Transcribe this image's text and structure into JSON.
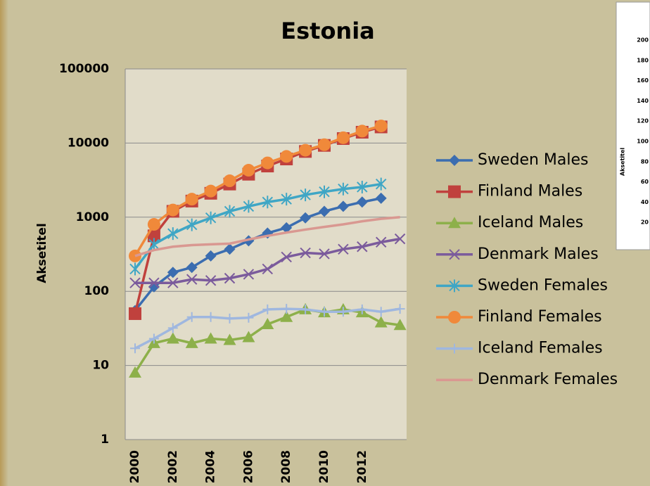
{
  "chart_data": [
    {
      "type": "line",
      "title": "Estonia",
      "ylabel": "Aksetitel",
      "yscale": "log",
      "categories": [
        "2000",
        null,
        "2002",
        null,
        "2004",
        null,
        "2006",
        null,
        "2008",
        null,
        "2010",
        null,
        "2012",
        null,
        null
      ],
      "ylim": [
        1,
        100000
      ],
      "yticks": [
        1,
        10,
        100,
        1000,
        10000,
        100000
      ],
      "grid": true,
      "series": [
        {
          "name": "Sweden Males",
          "color": "#3b6db0",
          "marker": "diamond",
          "values": [
            55,
            115,
            180,
            210,
            300,
            370,
            480,
            610,
            720,
            980,
            1200,
            1400,
            1600,
            1800,
            null
          ]
        },
        {
          "name": "Finland Males",
          "color": "#c0413d",
          "marker": "square",
          "values": [
            50,
            560,
            1200,
            1650,
            2100,
            2800,
            3800,
            4900,
            6100,
            7700,
            9300,
            11500,
            14000,
            16500,
            null
          ]
        },
        {
          "name": "Iceland Males",
          "color": "#8db04a",
          "marker": "triangle",
          "values": [
            8,
            20,
            23,
            20,
            23,
            22,
            24,
            36,
            45,
            57,
            52,
            57,
            52,
            38,
            35
          ]
        },
        {
          "name": "Denmark Males",
          "color": "#7b5b9c",
          "marker": "x",
          "values": [
            130,
            130,
            130,
            145,
            140,
            150,
            170,
            200,
            290,
            330,
            320,
            370,
            400,
            460,
            510
          ]
        },
        {
          "name": "Sweden Females",
          "color": "#3fa6c5",
          "marker": "star",
          "values": [
            200,
            430,
            600,
            790,
            980,
            1200,
            1400,
            1600,
            1750,
            2000,
            2200,
            2400,
            2550,
            2800,
            null
          ]
        },
        {
          "name": "Finland Females",
          "color": "#f0893a",
          "marker": "circle",
          "values": [
            300,
            800,
            1250,
            1750,
            2250,
            3100,
            4300,
            5400,
            6600,
            8000,
            9500,
            11800,
            14500,
            17000,
            null
          ]
        },
        {
          "name": "Iceland Females",
          "color": "#9fb7df",
          "marker": "plus",
          "values": [
            17,
            23,
            32,
            45,
            45,
            43,
            44,
            57,
            58,
            57,
            53,
            53,
            57,
            53,
            58
          ]
        },
        {
          "name": "Denmark Females",
          "color": "#d99891",
          "marker": "none",
          "values": [
            300,
            360,
            400,
            420,
            430,
            440,
            500,
            560,
            620,
            680,
            740,
            800,
            880,
            950,
            1000
          ]
        }
      ]
    },
    {
      "type": "line",
      "ylabel": "Aksetitel",
      "ylim": [
        0,
        200
      ],
      "yticks": [
        200,
        180,
        160,
        140,
        120,
        100,
        80,
        60,
        40,
        20
      ]
    }
  ]
}
